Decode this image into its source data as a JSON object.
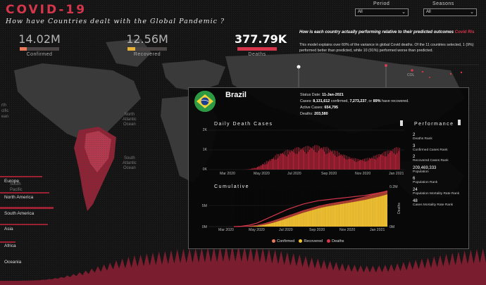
{
  "header": {
    "title": "COVID-19",
    "subtitle": "How have Countries dealt with the Global Pandemic ?"
  },
  "kpis": [
    {
      "value": "14.02M",
      "label": "Confirmed",
      "bar_fraction": 0.18,
      "color": "#e8795a"
    },
    {
      "value": "12.56M",
      "label": "Recovered",
      "bar_fraction": 0.2,
      "color": "#e8b23a"
    },
    {
      "value": "377.79K",
      "label": "Deaths",
      "bar_fraction": 1.0,
      "color": "#d6364b"
    }
  ],
  "filters": {
    "period": {
      "label": "Period",
      "value": "All"
    },
    "seasons": {
      "label": "Seasons",
      "value": "All"
    }
  },
  "model": {
    "question": "How is each country actually performing relative to their predicted outcomes",
    "question_link": "Covid Ris",
    "description": "This model explains over 60% of the variance in global Covid deaths. Of the 11 countries selected, 1 (9%) performed better than predicted, while 10 (91%) performed worse than predicted."
  },
  "map_labels": {
    "col": "COL",
    "north_atlantic": [
      "North",
      "Atlantic",
      "Ocean"
    ],
    "south_atlantic": [
      "South",
      "Atlantic",
      "Ocean"
    ],
    "north_pacific": [
      "rth",
      "cific",
      "ean"
    ],
    "south_pacific": [
      "South",
      "Pacific"
    ]
  },
  "continents": [
    "Europe",
    "North America",
    "South America",
    "Asia",
    "Africa",
    "Oceania"
  ],
  "popup": {
    "country": "Brazil",
    "status_date_label": "Status Date:",
    "status_date": "11-Jan-2021",
    "cases_label": "Cases:",
    "confirmed": "8,131,612",
    "confirmed_word": "confirmed,",
    "recovered": "7,273,237",
    "or_word": "or",
    "recovered_pct": "89%",
    "recovered_suffix": "have recovered.",
    "active_label": "Active Cases:",
    "active": "654,795",
    "deaths_label": "Deaths:",
    "deaths": "203,580",
    "daily_title": "Daily Death Cases",
    "cumulative_title": "Cumulative",
    "performance_title": "Performance",
    "deaths_axis": "Deaths",
    "performance": [
      {
        "value": "2",
        "label": "Deaths Rank"
      },
      {
        "value": "3",
        "label": "Confirmed Cases Rank"
      },
      {
        "value": "2",
        "label": "Recovered Cases Rank"
      },
      {
        "value": "209,469,333",
        "label": "Population"
      },
      {
        "value": "6",
        "label": "Population Rank"
      },
      {
        "value": "24",
        "label": "Population Mortality Rate Rank"
      },
      {
        "value": "48",
        "label": "Cases Mortality Rate Rank"
      }
    ],
    "legend": [
      {
        "label": "Confirmed",
        "color": "#e8795a"
      },
      {
        "label": "Recovered",
        "color": "#f2c232"
      },
      {
        "label": "Deaths",
        "color": "#d6364b"
      }
    ]
  },
  "chart_data": [
    {
      "type": "bar",
      "title": "Daily Death Cases",
      "x_ticks": [
        "Mar 2020",
        "May 2020",
        "Jul 2020",
        "Sep 2020",
        "Nov 2020",
        "Jan 2021"
      ],
      "y_ticks": [
        "0K",
        "1K",
        "2K"
      ],
      "ylim": [
        0,
        2000
      ],
      "series": [
        {
          "name": "Deaths",
          "color": "#b8243a",
          "values": [
            0,
            0,
            0,
            5,
            10,
            20,
            35,
            60,
            90,
            130,
            180,
            230,
            290,
            350,
            420,
            500,
            560,
            620,
            700,
            760,
            820,
            870,
            900,
            940,
            970,
            1000,
            1020,
            1050,
            1080,
            1100,
            1110,
            1120,
            1130,
            1150,
            1160,
            1170,
            1180,
            1190,
            1180,
            1170,
            1150,
            1130,
            1100,
            1060,
            1020,
            980,
            940,
            900,
            850,
            800,
            760,
            720,
            680,
            640,
            600,
            570,
            550,
            530,
            520,
            520,
            530,
            550,
            570,
            600,
            640,
            680,
            720,
            760,
            800,
            840,
            880,
            920,
            960,
            1000,
            1030,
            1060,
            1090,
            1110
          ]
        }
      ]
    },
    {
      "type": "area",
      "title": "Cumulative",
      "x_ticks": [
        "Mar 2020",
        "May 2020",
        "Jul 2020",
        "Sep 2020",
        "Nov 2020",
        "Jan 2021"
      ],
      "y_ticks": [
        "0M",
        "5M"
      ],
      "y2_ticks": [
        "0M",
        "0.2M"
      ],
      "y2label": "Deaths",
      "series": [
        {
          "name": "Confirmed",
          "color": "#e8795a",
          "values": [
            0,
            0.02,
            0.1,
            0.3,
            0.7,
            1.2,
            1.8,
            2.4,
            3.0,
            3.6,
            4.1,
            4.6,
            5.0,
            5.3,
            5.6,
            5.9,
            6.3,
            6.7,
            7.2,
            7.7,
            8.1
          ]
        },
        {
          "name": "Recovered",
          "color": "#f2c232",
          "values": [
            0,
            0.01,
            0.05,
            0.15,
            0.4,
            0.8,
            1.3,
            1.9,
            2.5,
            3.1,
            3.6,
            4.1,
            4.5,
            4.8,
            5.1,
            5.4,
            5.7,
            6.0,
            6.4,
            6.8,
            7.3
          ]
        },
        {
          "name": "Deaths",
          "color": "#d6364b",
          "values": [
            0,
            0.002,
            0.008,
            0.02,
            0.04,
            0.06,
            0.08,
            0.1,
            0.115,
            0.13,
            0.14,
            0.15,
            0.155,
            0.16,
            0.165,
            0.17,
            0.175,
            0.18,
            0.188,
            0.196,
            0.2036
          ]
        }
      ]
    }
  ]
}
